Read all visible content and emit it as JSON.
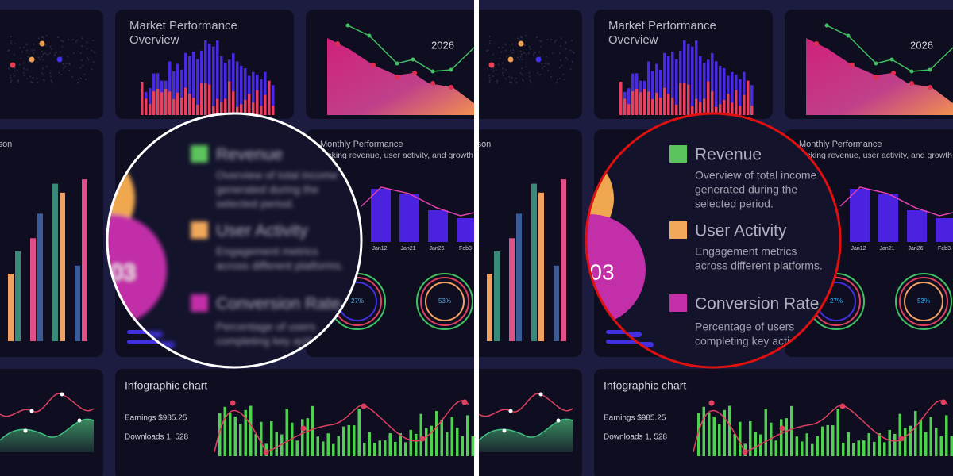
{
  "dashboard": {
    "market": {
      "title_lines": [
        "Market Performance",
        "Overview"
      ],
      "year": "2026"
    },
    "comparison": {
      "title": "Comparison"
    },
    "monthly": {
      "title": "Monthly Performance",
      "subtitle": "Tracking revenue, user activity, and growth",
      "x_labels": [
        "Jan12",
        "Jan21",
        "Jan26",
        "Feb3"
      ],
      "gauges": [
        "27%",
        "53%"
      ]
    },
    "legend": {
      "center_label": "03",
      "items": [
        {
          "label": "Revenue",
          "color": "#5cc45c",
          "description": [
            "Overview of total income",
            "generated during the",
            "selected period."
          ]
        },
        {
          "label": "User Activity",
          "color": "#f0a85a",
          "description": [
            "Engagement metrics",
            "across different platforms."
          ]
        },
        {
          "label": "Conversion Rate",
          "color": "#c22fa8",
          "description": [
            "Percentage of users",
            "completing key actions"
          ]
        }
      ]
    },
    "infographic": {
      "title": "Infographic chart",
      "stats": [
        "Earnings $985.25",
        "Downloads 1, 528"
      ]
    }
  }
}
